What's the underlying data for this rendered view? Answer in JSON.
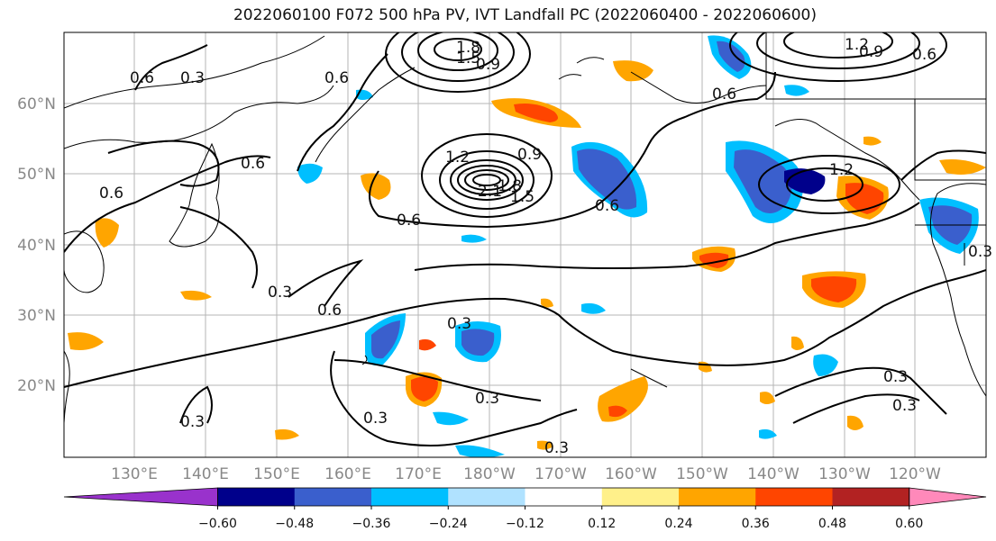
{
  "title": "2022060100 F072 500 hPa PV, IVT Landfall PC (2022060400 - 2022060600)",
  "lat_labels": [
    "60°N",
    "50°N",
    "40°N",
    "30°N",
    "20°N"
  ],
  "lon_labels": [
    "130°E",
    "140°E",
    "150°E",
    "160°E",
    "170°E",
    "180°W",
    "170°W",
    "160°W",
    "150°W",
    "140°W",
    "130°W",
    "120°W"
  ],
  "colorbar": {
    "colors": [
      "#9932cc",
      "#00008b",
      "#3a5fcd",
      "#00bfff",
      "#b0e2ff",
      "#ffffff",
      "#fff08a",
      "#ffa500",
      "#ff4500",
      "#b22222",
      "#ff89ba"
    ],
    "tick_labels": [
      "−0.60",
      "−0.48",
      "−0.36",
      "−0.24",
      "−0.12",
      "0.12",
      "0.24",
      "0.36",
      "0.48",
      "0.60"
    ]
  },
  "contour_labels": [
    "0.3",
    "0.6",
    "0.9",
    "1.2",
    "1.5",
    "1.8",
    "2.1"
  ]
}
